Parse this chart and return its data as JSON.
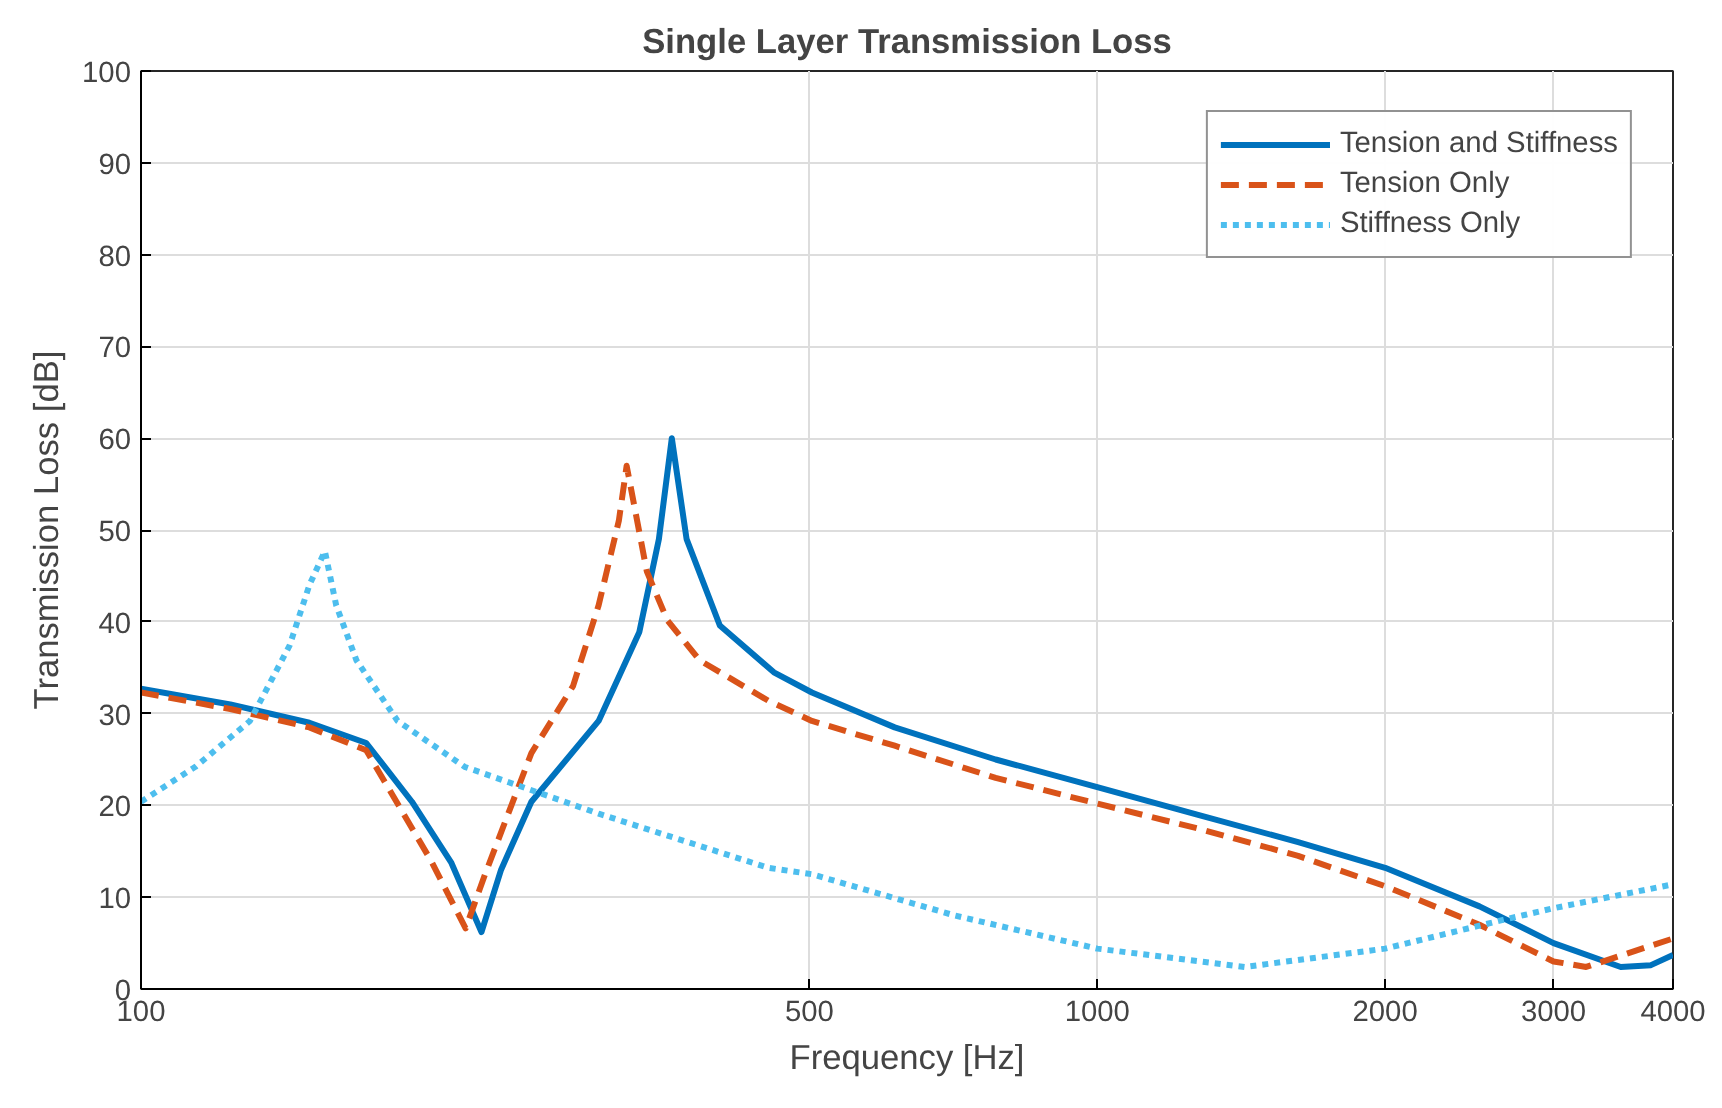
{
  "chart_data": {
    "type": "line",
    "title": "Single Layer Transmission Loss",
    "xlabel": "Frequency [Hz]",
    "ylabel": "Transmission Loss [dB]",
    "log": "x",
    "xlim": [
      100,
      4000
    ],
    "xticks": [
      100,
      500,
      1000,
      2000,
      3000,
      4000
    ],
    "ylim": [
      0,
      100
    ],
    "yticks": [
      0,
      10,
      20,
      30,
      40,
      50,
      60,
      70,
      80,
      90,
      100
    ],
    "grid": true,
    "legend": "top right",
    "series": [
      {
        "name": "Tension and Stiffness",
        "color": "#0072bd",
        "line_style": "solid",
        "x": [
          100,
          124,
          150,
          172,
          192,
          211,
          227,
          238,
          256,
          301,
          332,
          348,
          359,
          372,
          403,
          459,
          503,
          614,
          783,
          1000,
          1272,
          1622,
          2000,
          2510,
          3000,
          3527,
          3793,
          4000
        ],
        "values": [
          32.7,
          31,
          29,
          26.8,
          20.4,
          13.8,
          6.2,
          13,
          20.4,
          29.2,
          38.9,
          49,
          60,
          49,
          39.6,
          34.5,
          32.3,
          28.5,
          25,
          22,
          19,
          16,
          13.2,
          9,
          5,
          2.4,
          2.6,
          3.7
        ]
      },
      {
        "name": "Tension Only",
        "color": "#d95319",
        "line_style": "dashed",
        "x": [
          100,
          124,
          150,
          172,
          201,
          218.5,
          229,
          256,
          283,
          301,
          316,
          322,
          338,
          355,
          384,
          453,
          503,
          614,
          783,
          1000,
          1272,
          1622,
          2000,
          2510,
          3000,
          3245,
          4000
        ],
        "values": [
          32.3,
          30.5,
          28.5,
          26,
          14,
          6.6,
          12.5,
          25.7,
          33,
          41.8,
          51,
          57,
          45.5,
          40.2,
          35.8,
          31.4,
          29.2,
          26.5,
          23,
          20.2,
          17.5,
          14.5,
          11.2,
          7,
          3,
          2.4,
          5.5
        ]
      },
      {
        "name": "Stiffness Only",
        "color": "#4dbeee",
        "line_style": "dotted",
        "x": [
          100,
          114,
          130,
          143,
          150,
          155.7,
          160,
          168,
          185.5,
          218,
          301,
          453,
          503,
          710,
          1000,
          1426,
          2000,
          2650,
          3000,
          4000
        ],
        "values": [
          20.4,
          24.2,
          29.2,
          37.4,
          44,
          47.7,
          41.8,
          35.8,
          29.2,
          24.2,
          19.1,
          13.2,
          12.5,
          8,
          4.4,
          2.4,
          4.4,
          7.5,
          8.8,
          11.4
        ]
      }
    ]
  }
}
